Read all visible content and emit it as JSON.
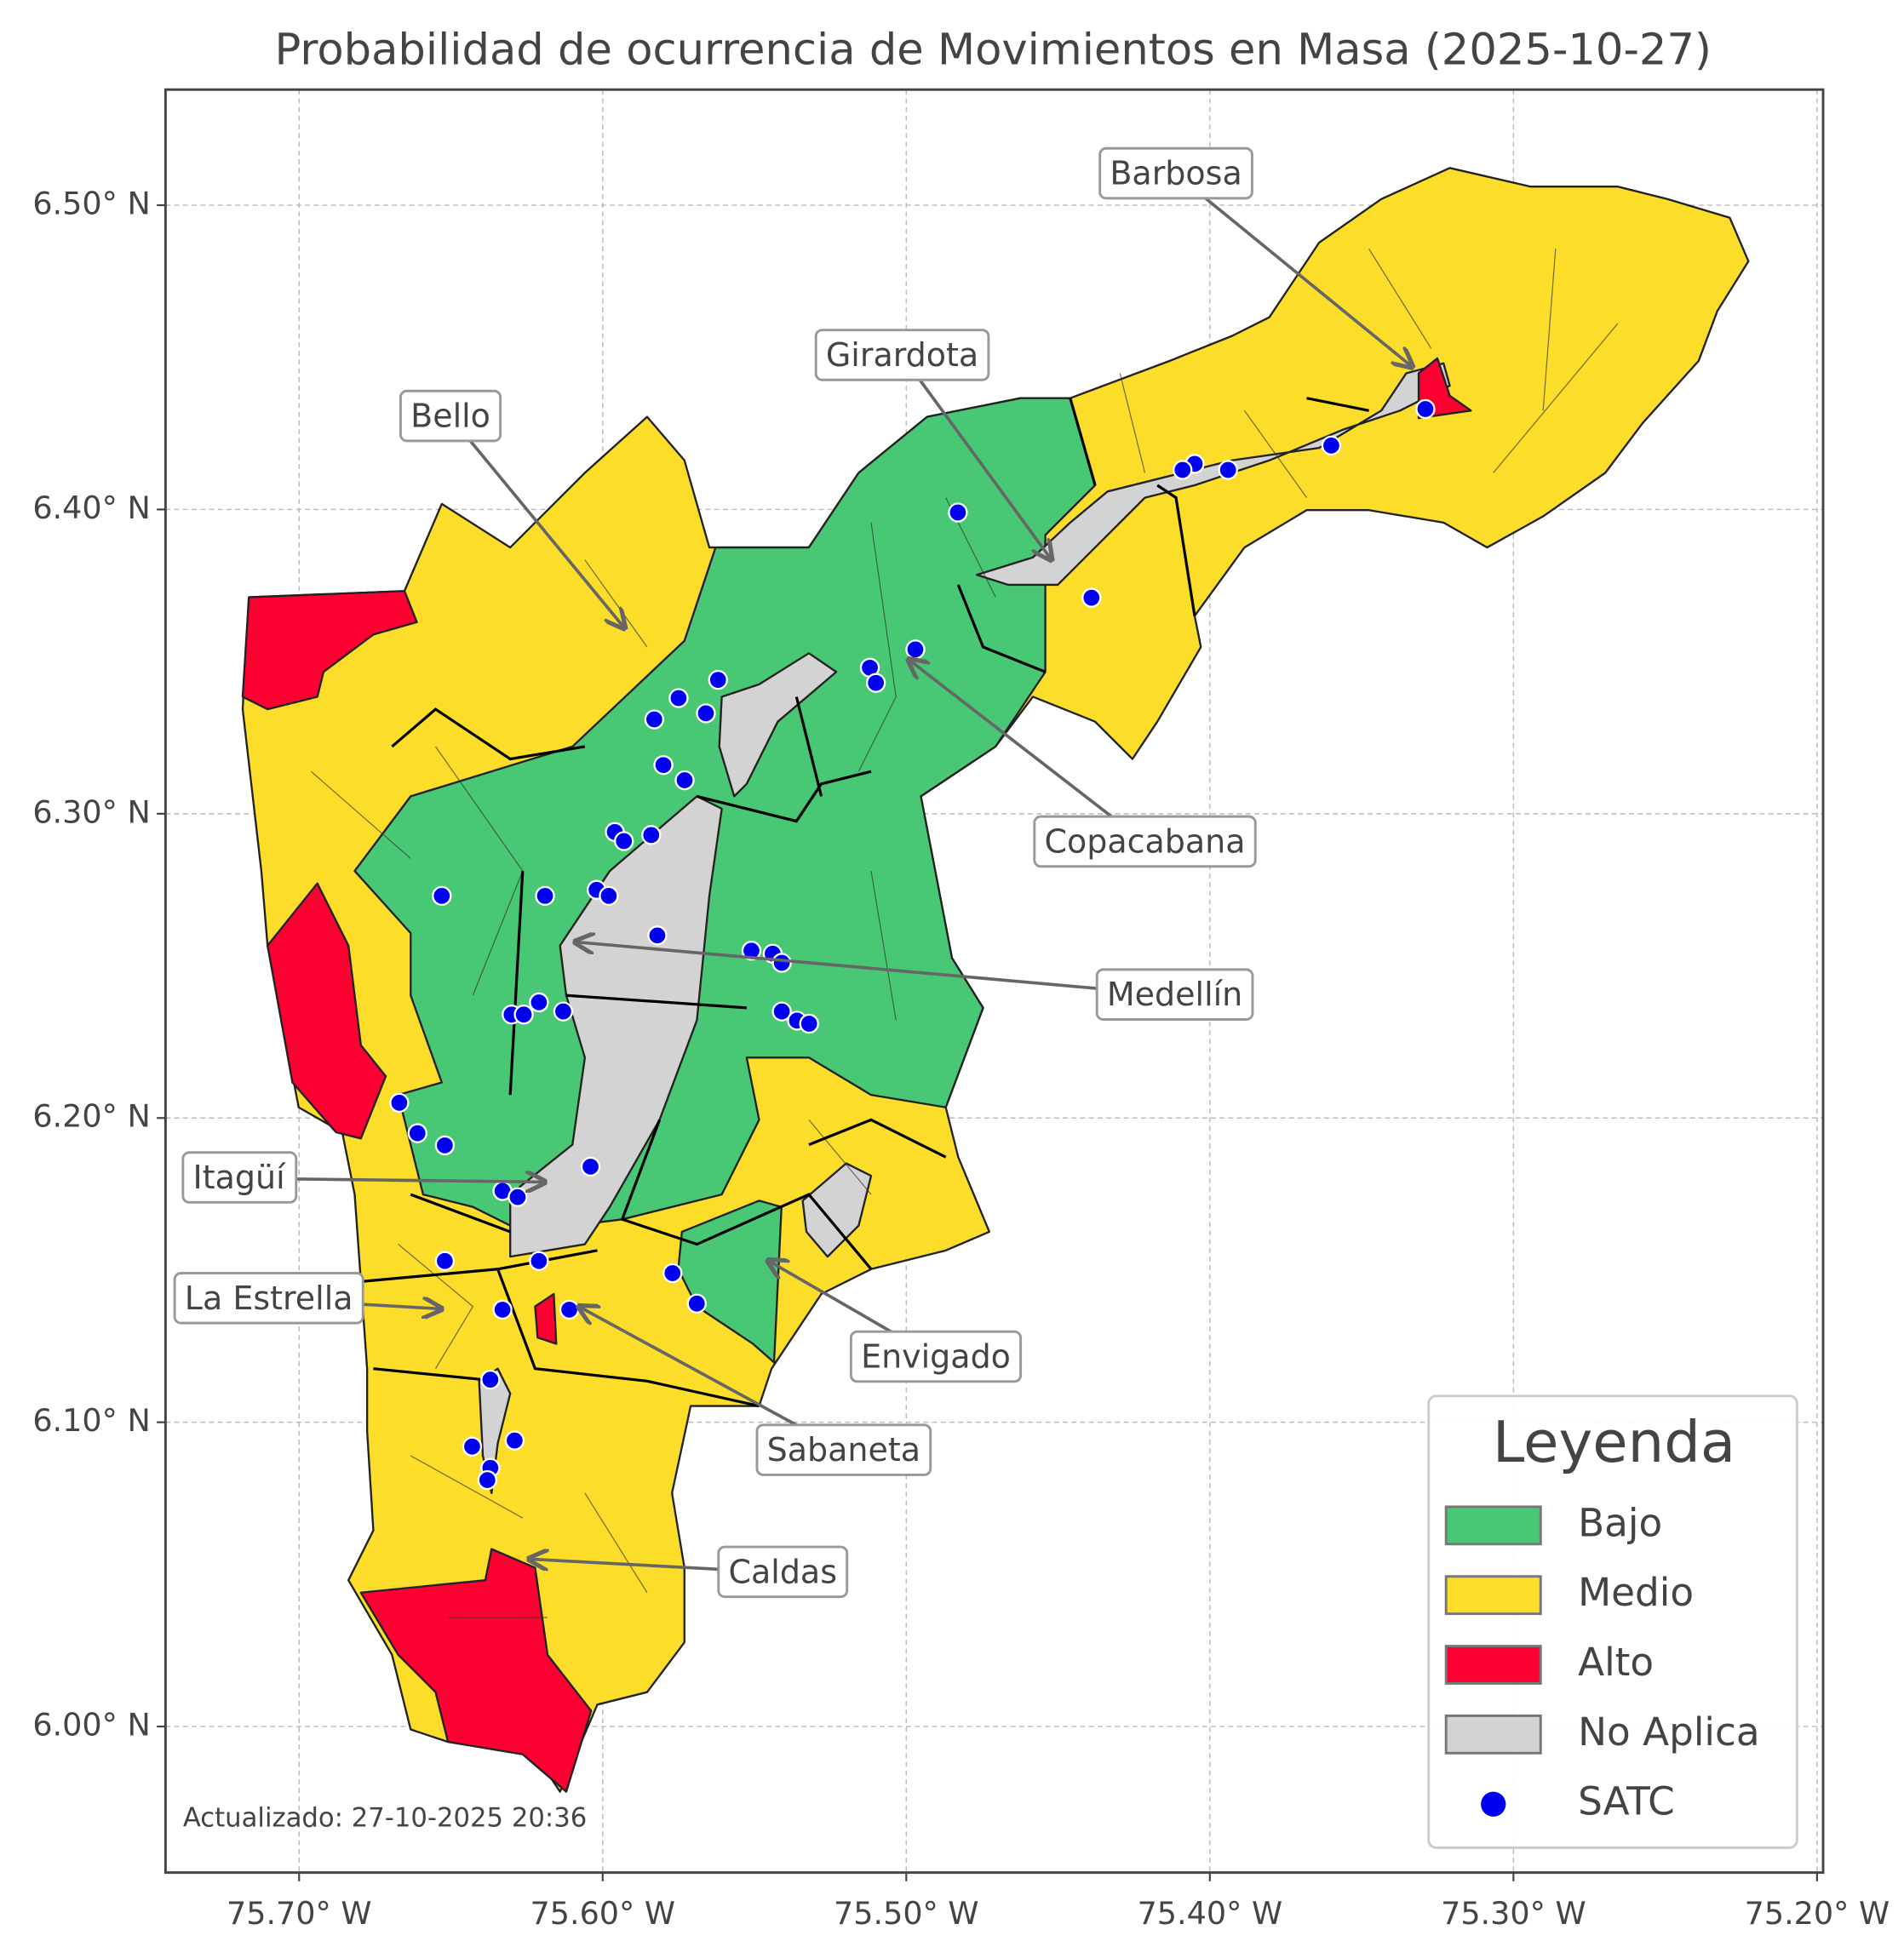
{
  "chart_data": {
    "type": "map",
    "title": "Probabilidad de ocurrencia de Movimientos en Masa (2025-10-27)",
    "xlim": [
      -75.744,
      -75.198
    ],
    "ylim": [
      5.952,
      6.538
    ],
    "xticks": [
      {
        "value": -75.7,
        "label": "75.70° W"
      },
      {
        "value": -75.6,
        "label": "75.60° W"
      },
      {
        "value": -75.5,
        "label": "75.50° W"
      },
      {
        "value": -75.4,
        "label": "75.40° W"
      },
      {
        "value": -75.3,
        "label": "75.30° W"
      },
      {
        "value": -75.2,
        "label": "75.20° W"
      }
    ],
    "yticks": [
      {
        "value": 6.0,
        "label": "6.00° N"
      },
      {
        "value": 6.1,
        "label": "6.10° N"
      },
      {
        "value": 6.2,
        "label": "6.20° N"
      },
      {
        "value": 6.3,
        "label": "6.30° N"
      },
      {
        "value": 6.4,
        "label": "6.40° N"
      },
      {
        "value": 6.5,
        "label": "6.50° N"
      }
    ],
    "grid": true,
    "legend_title": "Leyenda",
    "legend_position": "lower right",
    "classes": [
      {
        "name": "Bajo",
        "color": "#48c774"
      },
      {
        "name": "Medio",
        "color": "#fbdd2a"
      },
      {
        "name": "Alto",
        "color": "#fb0031"
      },
      {
        "name": "No Aplica",
        "color": "#d3d3d3"
      }
    ],
    "series": [
      {
        "name": "SATC",
        "color": "#0000f0",
        "x": [
          -75.329,
          -75.36,
          -75.394,
          -75.405,
          -75.409,
          -75.439,
          -75.483,
          -75.497,
          -75.512,
          -75.51,
          -75.562,
          -75.575,
          -75.583,
          -75.566,
          -75.58,
          -75.573,
          -75.596,
          -75.584,
          -75.593,
          -75.653,
          -75.619,
          -75.602,
          -75.598,
          -75.582,
          -75.551,
          -75.544,
          -75.541,
          -75.541,
          -75.536,
          -75.532,
          -75.63,
          -75.626,
          -75.621,
          -75.613,
          -75.667,
          -75.661,
          -75.652,
          -75.604,
          -75.633,
          -75.628,
          -75.621,
          -75.652,
          -75.577,
          -75.569,
          -75.633,
          -75.611,
          -75.637,
          -75.643,
          -75.629,
          -75.637,
          -75.638
        ],
        "y": [
          6.433,
          6.421,
          6.413,
          6.415,
          6.413,
          6.371,
          6.399,
          6.354,
          6.348,
          6.343,
          6.344,
          6.338,
          6.331,
          6.333,
          6.316,
          6.311,
          6.294,
          6.293,
          6.291,
          6.273,
          6.273,
          6.275,
          6.273,
          6.26,
          6.255,
          6.254,
          6.251,
          6.235,
          6.232,
          6.231,
          6.234,
          6.234,
          6.238,
          6.235,
          6.205,
          6.195,
          6.191,
          6.184,
          6.176,
          6.174,
          6.153,
          6.153,
          6.149,
          6.139,
          6.137,
          6.137,
          6.114,
          6.092,
          6.094,
          6.085,
          6.081
        ]
      }
    ],
    "annotations": [
      "Barbosa",
      "Girardota",
      "Bello",
      "Copacabana",
      "Medellín",
      "Itagüí",
      "La Estrella",
      "Envigado",
      "Sabaneta",
      "Caldas"
    ],
    "footnote": "Actualizado: 27-10-2025 20:36"
  }
}
